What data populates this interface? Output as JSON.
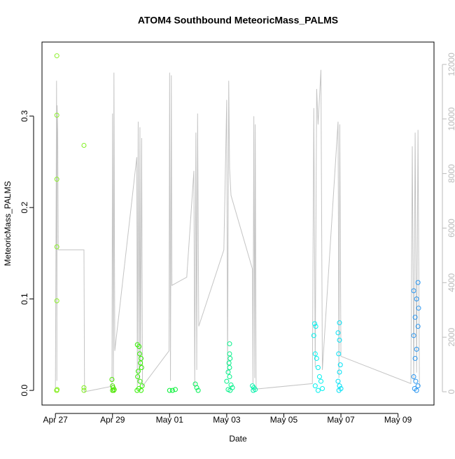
{
  "chart_data": {
    "type": "scatter",
    "title": "ATOM4 Southbound MeteoricMass_PALMS",
    "xlabel": "Date",
    "ylabel": "MeteoricMass_PALMS",
    "xlim": [
      -0.47,
      13.26
    ],
    "xticks": [
      {
        "value": 0,
        "label": "Apr 27"
      },
      {
        "value": 2,
        "label": "Apr 29"
      },
      {
        "value": 4,
        "label": "May 01"
      },
      {
        "value": 6,
        "label": "May 03"
      },
      {
        "value": 8,
        "label": "May 05"
      },
      {
        "value": 10,
        "label": "May 07"
      },
      {
        "value": 12,
        "label": "May 09"
      }
    ],
    "ylim": [
      -0.016,
      0.381
    ],
    "yticks": [
      {
        "value": 0,
        "label": "0.0"
      },
      0.1,
      0.2,
      0.3
    ],
    "y2lim": [
      -487,
      12820
    ],
    "y2ticks": [
      0,
      2000,
      4000,
      6000,
      8000,
      10000,
      12000
    ],
    "series": [
      {
        "color": "#8cf02a",
        "mode": "points",
        "x": [
          0.05,
          0.05,
          0.05,
          0.05,
          0.05,
          0.04,
          0.05,
          0.06
        ],
        "values": [
          0.366,
          0.301,
          0.231,
          0.157,
          0.098,
          0.0,
          0.0,
          0.001
        ]
      },
      {
        "color": "#7ff01e",
        "mode": "points",
        "x": [
          1.0,
          1.0,
          1.0
        ],
        "values": [
          0.268,
          0.003,
          0.0
        ]
      },
      {
        "color": "#4ce600",
        "mode": "points",
        "x": [
          1.98,
          2.0,
          2.02,
          2.0,
          2.04,
          2.06
        ],
        "values": [
          0.012,
          0.005,
          0.003,
          0.0,
          0.0,
          0.001
        ]
      },
      {
        "color": "#33ee00",
        "mode": "points",
        "x": [
          2.87,
          2.93,
          2.95,
          3.0,
          2.98,
          3.02,
          2.9,
          2.88,
          2.96,
          3.04,
          2.92,
          2.86,
          3.0
        ],
        "values": [
          0.05,
          0.048,
          0.04,
          0.035,
          0.03,
          0.025,
          0.021,
          0.015,
          0.01,
          0.005,
          0.002,
          0.0,
          0.0
        ]
      },
      {
        "color": "#00f032",
        "mode": "points",
        "x": [
          4.0,
          4.1,
          4.2
        ],
        "values": [
          0.0,
          0.0,
          0.001
        ]
      },
      {
        "color": "#00f055",
        "mode": "points",
        "x": [
          4.9,
          4.95,
          5.0
        ],
        "values": [
          0.007,
          0.003,
          0.0
        ]
      },
      {
        "color": "#00f088",
        "mode": "points",
        "x": [
          6.1,
          6.1,
          6.12,
          6.08,
          6.1,
          6.05,
          6.1,
          6.0,
          6.15,
          6.2,
          6.05,
          6.12
        ],
        "values": [
          0.051,
          0.04,
          0.035,
          0.03,
          0.025,
          0.02,
          0.015,
          0.01,
          0.006,
          0.003,
          0.001,
          0.0
        ]
      },
      {
        "color": "#00f0a8",
        "mode": "points",
        "x": [
          6.9,
          6.95,
          7.0,
          6.93
        ],
        "values": [
          0.005,
          0.003,
          0.001,
          0.0
        ]
      },
      {
        "color": "#00f0ee",
        "mode": "points",
        "x": [
          9.08,
          9.12,
          9.05,
          9.1,
          9.15,
          9.2,
          9.25,
          9.3,
          9.1,
          9.35,
          9.2
        ],
        "values": [
          0.073,
          0.07,
          0.06,
          0.04,
          0.035,
          0.025,
          0.015,
          0.01,
          0.005,
          0.002,
          0.0
        ]
      },
      {
        "color": "#00e0f5",
        "mode": "points",
        "x": [
          9.95,
          9.9,
          9.95,
          9.92,
          9.98,
          9.95,
          9.9,
          9.95,
          10.0,
          9.93
        ],
        "values": [
          0.074,
          0.063,
          0.055,
          0.04,
          0.028,
          0.02,
          0.01,
          0.005,
          0.002,
          0.0
        ]
      },
      {
        "color": "#2a96f0",
        "mode": "points",
        "x": [
          12.7,
          12.55,
          12.65,
          12.72,
          12.6,
          12.7,
          12.55,
          12.65,
          12.6,
          12.55,
          12.62,
          12.7,
          12.58,
          12.65
        ],
        "values": [
          0.118,
          0.109,
          0.1,
          0.09,
          0.08,
          0.07,
          0.06,
          0.045,
          0.035,
          0.015,
          0.01,
          0.005,
          0.002,
          0.0
        ]
      },
      {
        "color": "#c4c4c4",
        "mode": "line",
        "axis": "y2",
        "x": [
          0,
          0.04,
          0.05,
          0.06,
          0.08,
          0.1,
          1.0,
          1.02,
          1.98,
          2.0,
          2.03,
          2.05,
          2.08,
          2.85,
          2.87,
          2.9,
          2.93,
          2.96,
          2.98,
          3.02,
          3.05,
          3.98,
          4.0,
          4.03,
          4.06,
          4.08,
          4.6,
          4.85,
          4.88,
          4.92,
          4.95,
          4.98,
          5.02,
          5.9,
          6.0,
          6.03,
          6.07,
          6.1,
          6.15,
          6.9,
          6.92,
          6.95,
          6.98,
          7.0,
          7.03,
          9.0,
          9.05,
          9.1,
          9.15,
          9.2,
          9.3,
          9.35,
          9.9,
          9.93,
          9.96,
          10.0,
          12.45,
          12.5,
          12.55,
          12.6,
          12.65,
          12.7,
          12.75
        ],
        "values": [
          0,
          11400,
          400,
          10500,
          9600,
          5200,
          5200,
          0,
          200,
          10200,
          400,
          11700,
          1500,
          8600,
          200,
          9900,
          300,
          9700,
          900,
          9300,
          200,
          1500,
          11700,
          400,
          11600,
          3900,
          4200,
          8100,
          200,
          9500,
          800,
          10200,
          2400,
          5200,
          10700,
          700,
          11400,
          8200,
          7200,
          4500,
          300,
          10100,
          500,
          9800,
          100,
          300,
          10400,
          900,
          11100,
          9800,
          11800,
          800,
          9900,
          500,
          9800,
          1300,
          300,
          9000,
          400,
          9500,
          700,
          9600,
          200
        ]
      }
    ]
  }
}
